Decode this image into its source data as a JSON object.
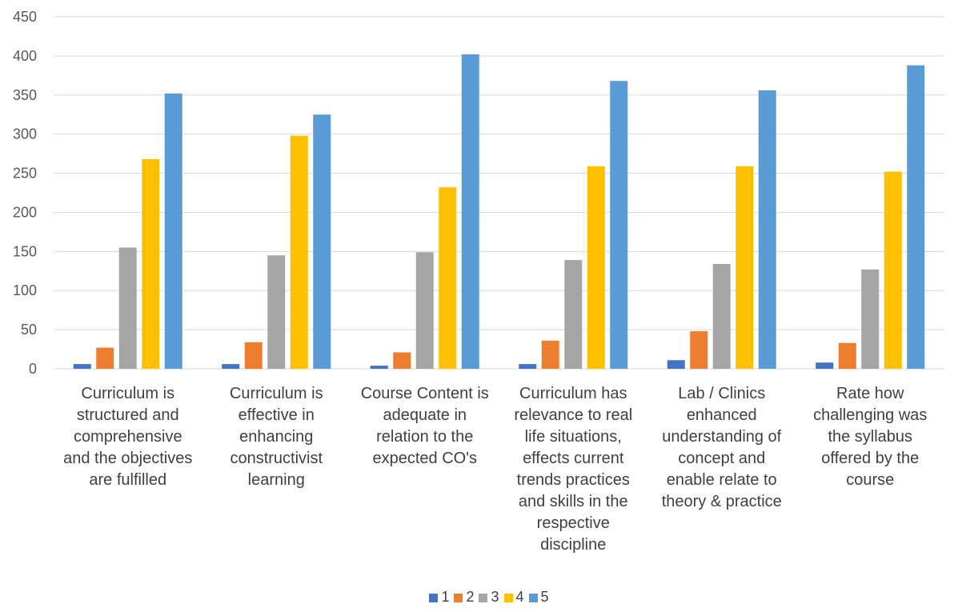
{
  "chart_data": {
    "type": "bar",
    "categories": [
      "Curriculum is structured and comprehensive and the objectives are fulfilled",
      "Curriculum is effective in enhancing constructivist learning",
      "Course Content is adequate in relation to the expected CO's",
      "Curriculum has relevance to real life situations, effects current trends practices and skills in the respective discipline",
      "Lab / Clinics enhanced understanding of concept and enable relate to theory & practice",
      "Rate how challenging was the syllabus offered by the course"
    ],
    "category_lines": [
      [
        "Curriculum is",
        "structured and",
        "comprehensive",
        "and the objectives",
        "are fulfilled"
      ],
      [
        "Curriculum is",
        "effective in",
        "enhancing",
        "constructivist",
        "learning"
      ],
      [
        "Course Content is",
        "adequate in",
        "relation to the",
        "expected CO's"
      ],
      [
        "Curriculum has",
        "relevance to real",
        "life situations,",
        "effects current",
        "trends practices",
        "and skills in the",
        "respective",
        "discipline"
      ],
      [
        "Lab / Clinics",
        "enhanced",
        "understanding of",
        "concept and",
        "enable relate to",
        "theory & practice"
      ],
      [
        "Rate how",
        "challenging was",
        "the syllabus",
        "offered by the",
        "course"
      ]
    ],
    "series": [
      {
        "name": "1",
        "color": "#4472C4",
        "values": [
          6,
          6,
          4,
          6,
          11,
          8
        ]
      },
      {
        "name": "2",
        "color": "#ED7D31",
        "values": [
          27,
          34,
          21,
          36,
          48,
          33
        ]
      },
      {
        "name": "3",
        "color": "#A5A5A5",
        "values": [
          155,
          145,
          149,
          139,
          134,
          127
        ]
      },
      {
        "name": "4",
        "color": "#FFC000",
        "values": [
          268,
          298,
          232,
          259,
          259,
          252
        ]
      },
      {
        "name": "5",
        "color": "#5B9BD5",
        "values": [
          352,
          325,
          402,
          368,
          356,
          388
        ]
      }
    ],
    "y_ticks": [
      "0",
      "50",
      "100",
      "150",
      "200",
      "250",
      "300",
      "350",
      "400",
      "450"
    ],
    "ylim": [
      0,
      450
    ],
    "grid": true,
    "legend_position": "bottom",
    "title": "",
    "xlabel": "",
    "ylabel": ""
  }
}
